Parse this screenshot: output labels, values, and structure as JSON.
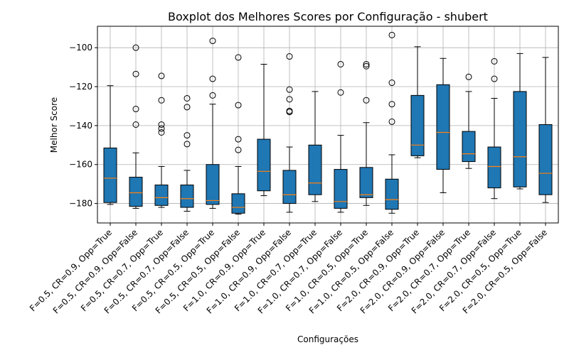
{
  "chart_data": {
    "type": "boxplot",
    "title": "Boxplot dos Melhores Scores por Configuração - shubert",
    "xlabel": "Configurações",
    "ylabel": "Melhor Score",
    "ylim": [
      -190,
      -89
    ],
    "yticks": [
      -100,
      -120,
      -140,
      -160,
      -180
    ],
    "grid": true,
    "colors": {
      "box_fill": "#1f77b4",
      "median": "#ff7f0e",
      "line": "#000000",
      "grid": "#b0b0b0"
    },
    "categories": [
      "F=0.5, CR=0.9, Opp=True",
      "F=0.5, CR=0.9, Opp=False",
      "F=0.5, CR=0.7, Opp=True",
      "F=0.5, CR=0.7, Opp=False",
      "F=0.5, CR=0.5, Opp=True",
      "F=0.5, CR=0.5, Opp=False",
      "F=1.0, CR=0.9, Opp=True",
      "F=1.0, CR=0.9, Opp=False",
      "F=1.0, CR=0.7, Opp=True",
      "F=1.0, CR=0.7, Opp=False",
      "F=1.0, CR=0.5, Opp=True",
      "F=1.0, CR=0.5, Opp=False",
      "F=2.0, CR=0.9, Opp=True",
      "F=2.0, CR=0.9, Opp=False",
      "F=2.0, CR=0.7, Opp=True",
      "F=2.0, CR=0.7, Opp=False",
      "F=2.0, CR=0.5, Opp=True",
      "F=2.0, CR=0.5, Opp=False"
    ],
    "boxes": [
      {
        "whisker_low": -180.5,
        "q1": -179.5,
        "median": -167,
        "q3": -151.5,
        "whisker_high": -119.5,
        "outliers": []
      },
      {
        "whisker_low": -182.5,
        "q1": -181.5,
        "median": -174.5,
        "q3": -166.5,
        "whisker_high": -154,
        "outliers": [
          -100,
          -113.5,
          -131.5,
          -139.5
        ]
      },
      {
        "whisker_low": -182,
        "q1": -181,
        "median": -177,
        "q3": -170.5,
        "whisker_high": -161,
        "outliers": [
          -114.5,
          -127,
          -139.5,
          -141.5,
          -143.5
        ]
      },
      {
        "whisker_low": -184,
        "q1": -182,
        "median": -177.5,
        "q3": -170.5,
        "whisker_high": -163,
        "outliers": [
          -126,
          -130.5,
          -145,
          -149.5
        ]
      },
      {
        "whisker_low": -182.5,
        "q1": -180.5,
        "median": -178.5,
        "q3": -160,
        "whisker_high": -129,
        "outliers": [
          -96.5,
          -116,
          -124.5
        ]
      },
      {
        "whisker_low": -185.5,
        "q1": -185,
        "median": -182,
        "q3": -175,
        "whisker_high": -161,
        "outliers": [
          -105,
          -129.5,
          -147,
          -152.5
        ]
      },
      {
        "whisker_low": -176,
        "q1": -173.5,
        "median": -163.5,
        "q3": -147,
        "whisker_high": -108.5,
        "outliers": []
      },
      {
        "whisker_low": -184.5,
        "q1": -180,
        "median": -175.5,
        "q3": -163,
        "whisker_high": -151,
        "outliers": [
          -104.5,
          -121.5,
          -126.5,
          -132.5,
          -133
        ]
      },
      {
        "whisker_low": -179,
        "q1": -175.5,
        "median": -169.5,
        "q3": -150,
        "whisker_high": -122.5,
        "outliers": []
      },
      {
        "whisker_low": -184.5,
        "q1": -182.5,
        "median": -179,
        "q3": -162.5,
        "whisker_high": -145,
        "outliers": [
          -108.5,
          -123
        ]
      },
      {
        "whisker_low": -181,
        "q1": -177,
        "median": -175.5,
        "q3": -161.5,
        "whisker_high": -138.5,
        "outliers": [
          -108.5,
          -109.5,
          -127
        ]
      },
      {
        "whisker_low": -185,
        "q1": -183,
        "median": -178,
        "q3": -167.5,
        "whisker_high": -155,
        "outliers": [
          -93.5,
          -118,
          -129,
          -138
        ]
      },
      {
        "whisker_low": -156.5,
        "q1": -155.5,
        "median": -150,
        "q3": -124.5,
        "whisker_high": -99.5,
        "outliers": []
      },
      {
        "whisker_low": -174.5,
        "q1": -162.5,
        "median": -143.5,
        "q3": -119,
        "whisker_high": -105.5,
        "outliers": []
      },
      {
        "whisker_low": -162,
        "q1": -158.5,
        "median": -154.5,
        "q3": -143,
        "whisker_high": -122.5,
        "outliers": [
          -115
        ]
      },
      {
        "whisker_low": -177.5,
        "q1": -172,
        "median": -161,
        "q3": -151,
        "whisker_high": -126,
        "outliers": [
          -107,
          -116
        ]
      },
      {
        "whisker_low": -172.5,
        "q1": -171.5,
        "median": -156,
        "q3": -122.5,
        "whisker_high": -103,
        "outliers": []
      },
      {
        "whisker_low": -179.5,
        "q1": -175.5,
        "median": -164.5,
        "q3": -139.5,
        "whisker_high": -105,
        "outliers": []
      }
    ]
  }
}
